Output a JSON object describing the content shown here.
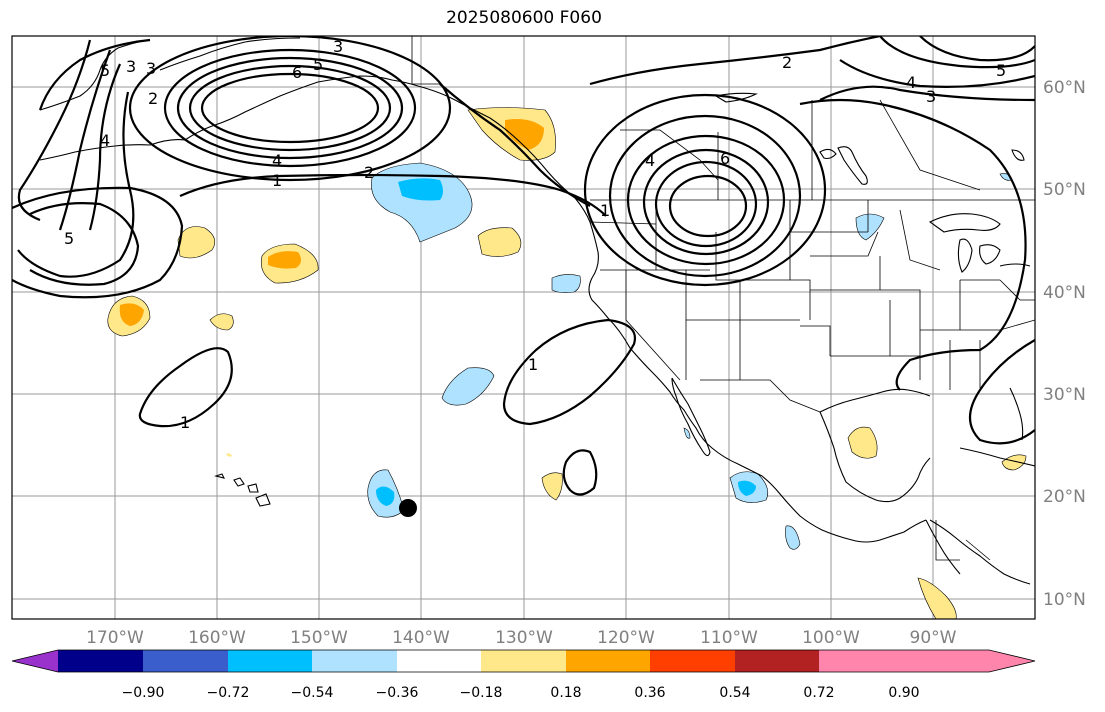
{
  "title": "2025080600 F060",
  "map": {
    "lon_labels": [
      "170°W",
      "160°W",
      "150°W",
      "140°W",
      "130°W",
      "120°W",
      "110°W",
      "100°W",
      "90°W"
    ],
    "lat_labels": [
      "60°N",
      "50°N",
      "40°N",
      "30°N",
      "20°N",
      "10°N"
    ],
    "contour_labels": [
      "3",
      "5",
      "6",
      "5",
      "2",
      "3",
      "4",
      "4",
      "1",
      "2",
      "5",
      "1",
      "1",
      "2",
      "6",
      "4",
      "1",
      "3",
      "4",
      "3",
      "5"
    ],
    "marker": "storm-center-dot"
  },
  "colorbar": {
    "tick_labels": [
      "−0.90",
      "−0.72",
      "−0.54",
      "−0.36",
      "−0.18",
      "0.18",
      "0.36",
      "0.54",
      "0.72",
      "0.90"
    ],
    "colors": [
      "#9932cc",
      "#00008b",
      "#3a5fcd",
      "#00bfff",
      "#aee2ff",
      "#ffffff",
      "#ffe88a",
      "#ffa500",
      "#ff3f00",
      "#b22222",
      "#ff85ad"
    ]
  }
}
